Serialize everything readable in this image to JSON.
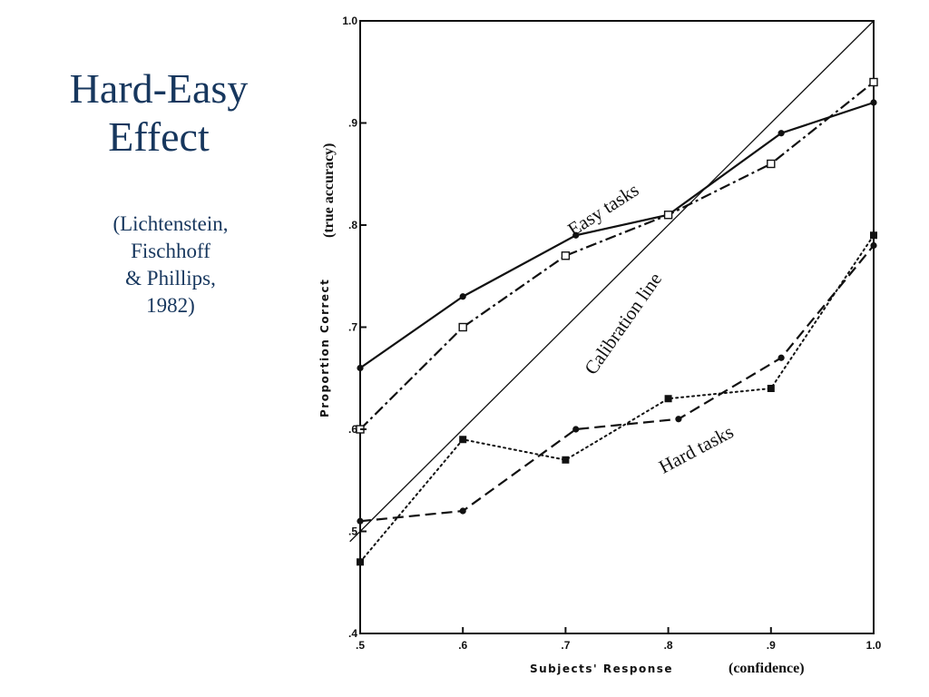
{
  "slide": {
    "title_lines": [
      "Hard-Easy",
      "Effect"
    ],
    "citation_lines": [
      "(Lichtenstein,",
      "Fischhoff",
      "& Phillips,",
      "1982)"
    ]
  },
  "chart_data": {
    "type": "line",
    "xlabel": "Subjects' Response",
    "xlabel_note": "(confidence)",
    "ylabel": "Proportion Correct",
    "ylabel_note": "(true accuracy)",
    "xlim": [
      0.5,
      1.0
    ],
    "ylim": [
      0.4,
      1.0
    ],
    "x_ticks": [
      {
        "value": 0.5,
        "label": ".5"
      },
      {
        "value": 0.6,
        "label": ".6"
      },
      {
        "value": 0.7,
        "label": ".7"
      },
      {
        "value": 0.8,
        "label": ".8"
      },
      {
        "value": 0.9,
        "label": ".9"
      },
      {
        "value": 1.0,
        "label": "1.0"
      }
    ],
    "y_ticks": [
      {
        "value": 0.4,
        "label": ".4"
      },
      {
        "value": 0.5,
        "label": ".5"
      },
      {
        "value": 0.6,
        "label": ".6"
      },
      {
        "value": 0.7,
        "label": ".7"
      },
      {
        "value": 0.8,
        "label": ".8"
      },
      {
        "value": 0.9,
        "label": ".9"
      },
      {
        "value": 1.0,
        "label": "1.0"
      }
    ],
    "grid": false,
    "series": [
      {
        "x": [
          0.5,
          0.6,
          0.71,
          0.8,
          0.91,
          1.0
        ],
        "y": [
          0.66,
          0.73,
          0.79,
          0.81,
          0.89,
          0.92
        ],
        "line_style": "solid",
        "marker": "filled-circle"
      },
      {
        "x": [
          0.5,
          0.6,
          0.7,
          0.8,
          0.9,
          1.0
        ],
        "y": [
          0.6,
          0.7,
          0.77,
          0.81,
          0.86,
          0.94
        ],
        "line_style": "dash-dot",
        "marker": "open-square"
      },
      {
        "x": [
          0.5,
          0.6,
          0.71,
          0.81,
          0.91,
          1.0
        ],
        "y": [
          0.51,
          0.52,
          0.6,
          0.61,
          0.67,
          0.78
        ],
        "line_style": "dashed",
        "marker": "filled-circle"
      },
      {
        "x": [
          0.5,
          0.6,
          0.7,
          0.8,
          0.9,
          1.0
        ],
        "y": [
          0.47,
          0.59,
          0.57,
          0.63,
          0.64,
          0.79
        ],
        "line_style": "dotted",
        "marker": "filled-square"
      }
    ],
    "reference_line": {
      "x": [
        0.49,
        1.0
      ],
      "y": [
        0.49,
        1.0
      ]
    },
    "annotations": [
      {
        "text": "Easy tasks",
        "x": 0.74,
        "y": 0.81,
        "rotate": -33
      },
      {
        "text": "Calibration line",
        "x": 0.761,
        "y": 0.7,
        "rotate": -55
      },
      {
        "text": "Hard tasks",
        "x": 0.83,
        "y": 0.575,
        "rotate": -28
      }
    ],
    "colors": {
      "ink": "#111111",
      "title": "#17375e"
    }
  }
}
